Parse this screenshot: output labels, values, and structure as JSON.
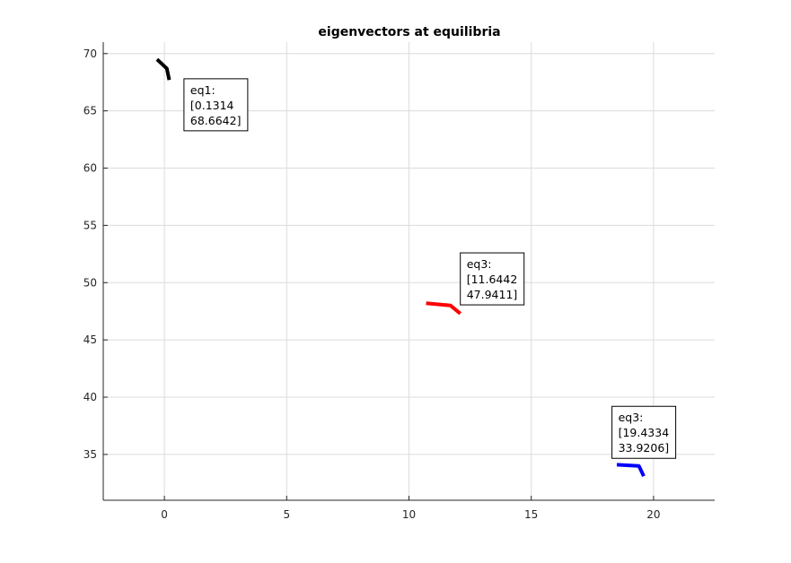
{
  "chart_data": {
    "type": "line",
    "title": "eigenvectors at equilibria",
    "xlabel": "",
    "ylabel": "",
    "xlim": [
      -2.5,
      22.5
    ],
    "ylim": [
      31,
      71
    ],
    "xticks": [
      0,
      5,
      10,
      15,
      20
    ],
    "yticks": [
      35,
      40,
      45,
      50,
      55,
      60,
      65,
      70
    ],
    "grid": true,
    "legend": "none",
    "series": [
      {
        "color": "#000000",
        "points": [
          [
            -0.3,
            69.5
          ],
          [
            0.1,
            68.7
          ],
          [
            0.2,
            67.7
          ]
        ]
      },
      {
        "color": "#ff0000",
        "points": [
          [
            10.7,
            48.2
          ],
          [
            11.7,
            48.0
          ],
          [
            12.1,
            47.3
          ]
        ]
      },
      {
        "color": "#0000ff",
        "points": [
          [
            18.5,
            34.1
          ],
          [
            19.4,
            34.0
          ],
          [
            19.6,
            33.1
          ]
        ]
      }
    ],
    "annotations": [
      {
        "anchor": [
          0.8,
          67.8
        ],
        "lines": [
          "eq1:",
          "[0.1314",
          "68.6642]"
        ]
      },
      {
        "anchor": [
          12.1,
          52.6
        ],
        "lines": [
          "eq3:",
          "[11.6442",
          "47.9411]"
        ]
      },
      {
        "anchor": [
          18.3,
          39.2
        ],
        "lines": [
          "eq3:",
          "[19.4334",
          "33.9206]"
        ]
      }
    ]
  }
}
